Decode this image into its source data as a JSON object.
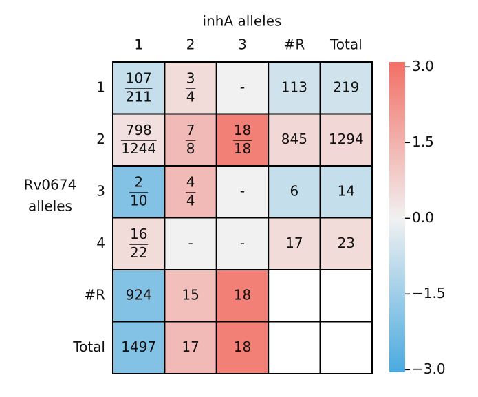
{
  "chart_data": {
    "type": "heatmap",
    "title": "inhA alleles",
    "ylabel": [
      "Rv0674",
      "alleles"
    ],
    "x_categories": [
      "1",
      "2",
      "3",
      "#R",
      "Total"
    ],
    "y_categories": [
      "1",
      "2",
      "3",
      "4",
      "#R",
      "Total"
    ],
    "values": [
      [
        -0.8,
        0.5,
        0,
        -0.6,
        -0.6
      ],
      [
        0.4,
        1.3,
        2.7,
        0.6,
        0.6
      ],
      [
        -2.0,
        1.3,
        0,
        -0.8,
        -0.8
      ],
      [
        0.5,
        0,
        0,
        0.5,
        0.5
      ],
      [
        -2.0,
        1.2,
        2.7,
        null,
        null
      ],
      [
        -2.0,
        1.3,
        2.7,
        null,
        null
      ]
    ],
    "cell_labels": [
      [
        {
          "top": "107",
          "bottom": "211"
        },
        {
          "top": "3",
          "bottom": "4"
        },
        "-",
        "113",
        "219"
      ],
      [
        {
          "top": "798",
          "bottom": "1244"
        },
        {
          "top": "7",
          "bottom": "8"
        },
        {
          "top": "18",
          "bottom": "18"
        },
        "845",
        "1294"
      ],
      [
        {
          "top": "2",
          "bottom": "10"
        },
        {
          "top": "4",
          "bottom": "4"
        },
        "-",
        "6",
        "14"
      ],
      [
        {
          "top": "16",
          "bottom": "22"
        },
        "-",
        "-",
        "17",
        "23"
      ],
      [
        "924",
        "15",
        "18",
        null,
        null
      ],
      [
        "1497",
        "17",
        "18",
        null,
        null
      ]
    ],
    "clim": [
      -3.05,
      3.1
    ],
    "colors": [
      "#4aaadf",
      "#f1f1f1",
      "#f36f65"
    ],
    "cticks": [
      {
        "value": 3,
        "label": "3.0"
      },
      {
        "value": 1.5,
        "label": "1.5"
      },
      {
        "value": 0,
        "label": "0.0"
      },
      {
        "value": -1.5,
        "label": "−1.5"
      },
      {
        "value": -3,
        "label": "−3.0"
      }
    ]
  }
}
